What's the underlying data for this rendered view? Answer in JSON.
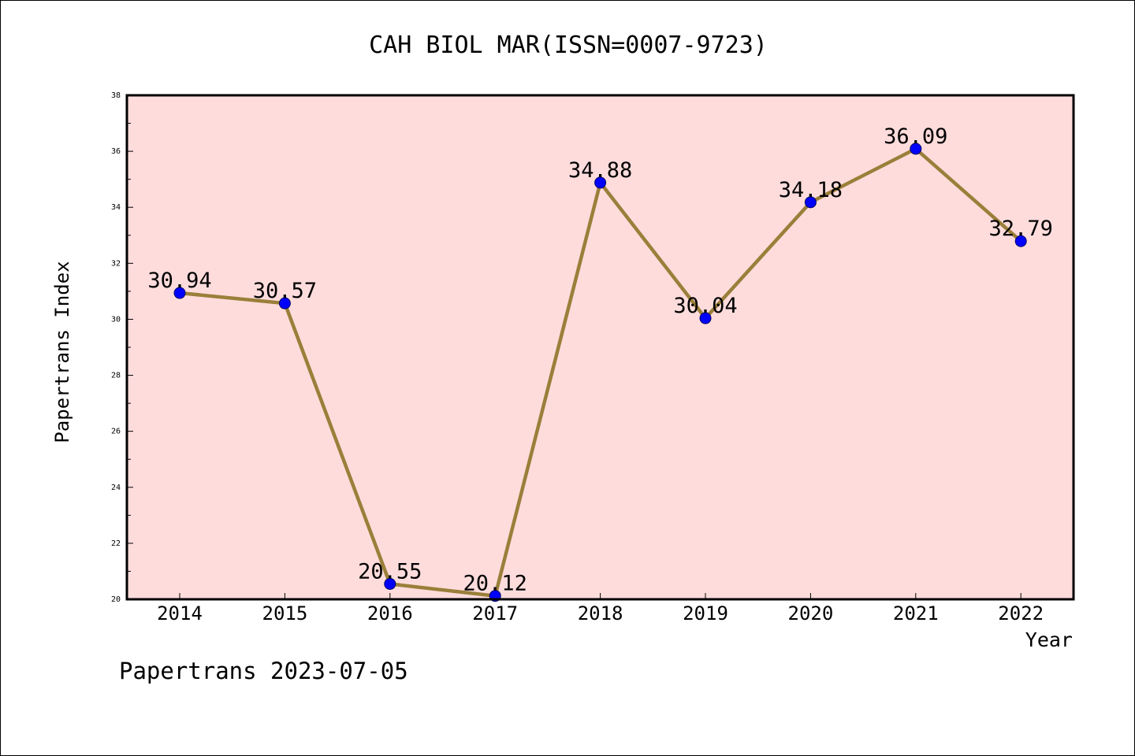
{
  "chart_data": {
    "type": "line",
    "title": "CAH BIOL MAR(ISSN=0007-9723)",
    "xlabel": "Year",
    "ylabel": "Papertrans Index",
    "categories": [
      "2014",
      "2015",
      "2016",
      "2017",
      "2018",
      "2019",
      "2020",
      "2021",
      "2022"
    ],
    "series": [
      {
        "values": [
          30.94,
          30.57,
          20.55,
          20.12,
          34.88,
          30.04,
          34.18,
          36.09,
          32.79
        ],
        "data_labels": [
          "30.94",
          "30.57",
          "20.55",
          "20.12",
          "34.88",
          "30.04",
          "34.18",
          "36.09",
          "32.79"
        ]
      }
    ],
    "ylim": [
      20,
      38
    ],
    "yticks": [
      "20",
      "22",
      "24",
      "26",
      "28",
      "30",
      "32",
      "34",
      "36",
      "38"
    ],
    "grid": false,
    "legend": "none",
    "colors": {
      "plot_background": "#ffdcdc",
      "line": "#9a7f3a",
      "marker": "#0000ff",
      "marker_edge": "#000066"
    }
  },
  "footer": "Papertrans 2023-07-05"
}
